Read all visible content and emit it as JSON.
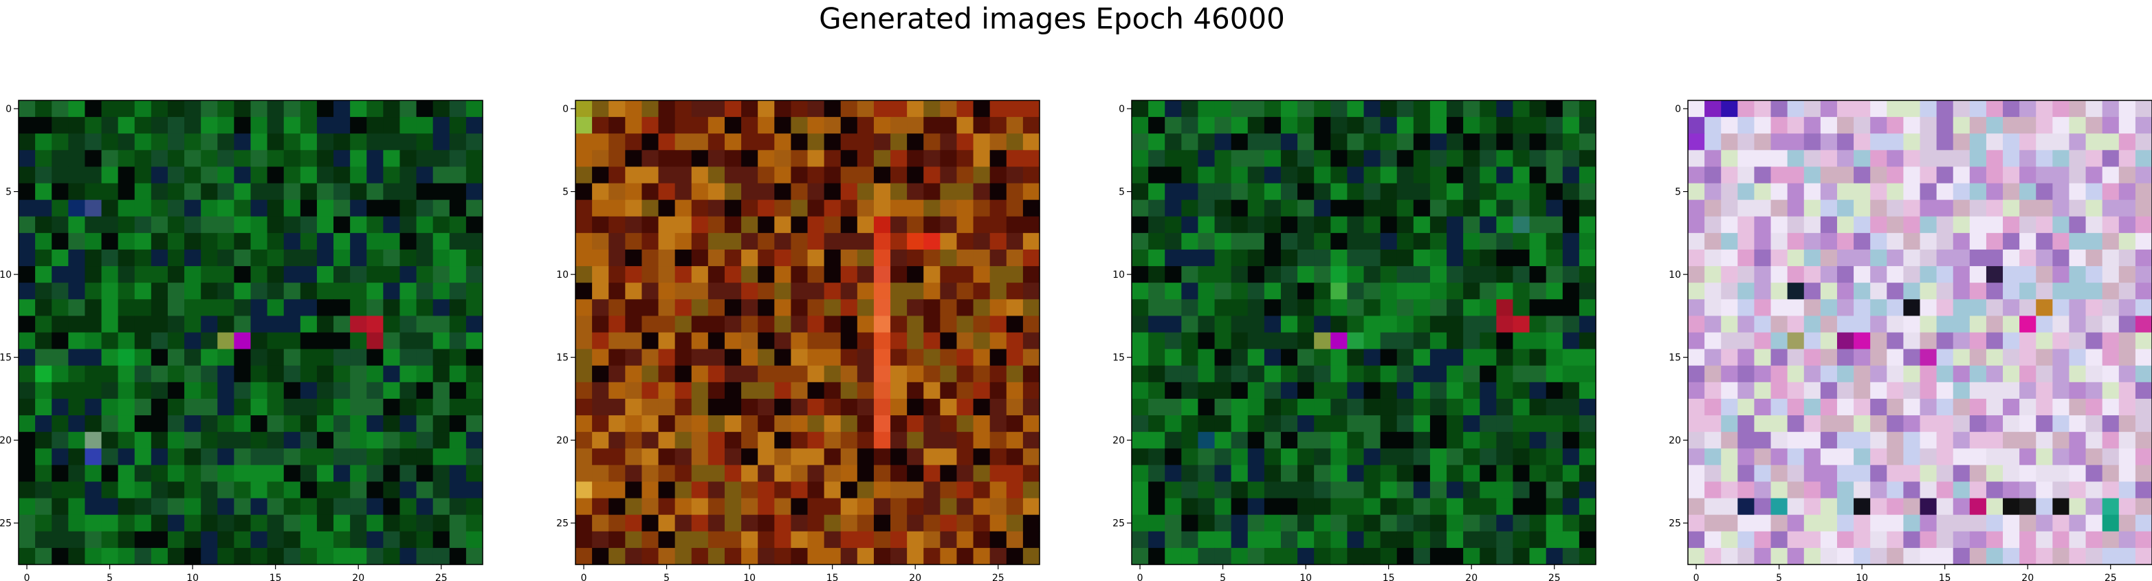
{
  "chart_data": {
    "type": "heatmap",
    "title": "Generated images Epoch 46000",
    "xlim": [
      -0.5,
      27.5
    ],
    "ylim": [
      27.5,
      -0.5
    ],
    "grid_size": [
      28,
      28
    ],
    "xticks": [
      0,
      5,
      10,
      15,
      20,
      25
    ],
    "yticks": [
      0,
      5,
      10,
      15,
      20,
      25
    ],
    "panels": [
      {
        "palette": [
          "#0a5a14",
          "#0b7a1e",
          "#06460e",
          "#0f8a24",
          "#05300b",
          "#134d2a",
          "#0a3a18",
          "#1c6a2e",
          "#020806",
          "#0a2040"
        ],
        "accents": [
          [
            6,
            3,
            "#0a2a6a"
          ],
          [
            6,
            4,
            "#3a4a8a"
          ],
          [
            13,
            20,
            "#b0152a"
          ],
          [
            13,
            21,
            "#c0182a"
          ],
          [
            14,
            21,
            "#a01225"
          ],
          [
            14,
            13,
            "#b000c0"
          ],
          [
            14,
            12,
            "#8a9a40"
          ],
          [
            21,
            4,
            "#3040b0"
          ],
          [
            20,
            4,
            "#7aa080"
          ],
          [
            15,
            6,
            "#0aa030"
          ],
          [
            16,
            1,
            "#10b030"
          ]
        ]
      },
      {
        "palette": [
          "#8a3c08",
          "#a35c10",
          "#6a1a06",
          "#b0620c",
          "#4a0c04",
          "#7a5a10",
          "#9a2a0a",
          "#c07a18",
          "#100204",
          "#5a1a10"
        ],
        "accents": [
          [
            7,
            18,
            "#c82010"
          ],
          [
            8,
            18,
            "#d83a18"
          ],
          [
            9,
            18,
            "#e04a20"
          ],
          [
            10,
            18,
            "#e05030"
          ],
          [
            11,
            18,
            "#e8602a"
          ],
          [
            12,
            18,
            "#e86030"
          ],
          [
            13,
            18,
            "#f07a40"
          ],
          [
            14,
            18,
            "#e05020"
          ],
          [
            15,
            18,
            "#e85a28"
          ],
          [
            16,
            18,
            "#e86030"
          ],
          [
            17,
            18,
            "#e05a28"
          ],
          [
            18,
            18,
            "#d84a20"
          ],
          [
            19,
            18,
            "#e85a30"
          ],
          [
            20,
            18,
            "#e04a20"
          ],
          [
            0,
            0,
            "#a0a020"
          ],
          [
            1,
            0,
            "#9abf40"
          ],
          [
            23,
            0,
            "#e0b040"
          ],
          [
            8,
            20,
            "#e03a10"
          ],
          [
            8,
            21,
            "#e02a18"
          ]
        ]
      },
      {
        "palette": [
          "#0a5a14",
          "#0b7a1e",
          "#06460e",
          "#0f8a24",
          "#05300b",
          "#134d2a",
          "#0a3a18",
          "#1c6a2e",
          "#020806",
          "#0a2040"
        ],
        "accents": [
          [
            13,
            22,
            "#b0152a"
          ],
          [
            13,
            23,
            "#c0182a"
          ],
          [
            12,
            22,
            "#a01225"
          ],
          [
            14,
            12,
            "#b000c0"
          ],
          [
            14,
            11,
            "#8a9a40"
          ],
          [
            10,
            12,
            "#10a030"
          ],
          [
            11,
            12,
            "#40b040"
          ],
          [
            14,
            13,
            "#20a040"
          ],
          [
            7,
            23,
            "#2a7a6a"
          ],
          [
            20,
            4,
            "#0a4a6a"
          ]
        ]
      },
      {
        "palette": [
          "#d8c8e0",
          "#e8e0f0",
          "#c0a0d8",
          "#f0e8f8",
          "#d0b0c0",
          "#b888d0",
          "#e8c0e0",
          "#a0c8d8",
          "#d8e8c8",
          "#c8d0f0",
          "#9a70c0",
          "#e0a0d0"
        ],
        "accents": [
          [
            0,
            1,
            "#8020c0"
          ],
          [
            0,
            2,
            "#3010b0"
          ],
          [
            1,
            0,
            "#8040c0"
          ],
          [
            2,
            0,
            "#9030d0"
          ],
          [
            11,
            6,
            "#102030"
          ],
          [
            12,
            13,
            "#101018"
          ],
          [
            14,
            6,
            "#a0a060"
          ],
          [
            14,
            9,
            "#8a1080"
          ],
          [
            14,
            10,
            "#d010b0"
          ],
          [
            15,
            14,
            "#c020b0"
          ],
          [
            24,
            3,
            "#102050"
          ],
          [
            24,
            5,
            "#20a0a0"
          ],
          [
            24,
            10,
            "#101018"
          ],
          [
            24,
            14,
            "#301050"
          ],
          [
            24,
            17,
            "#c01070"
          ],
          [
            24,
            19,
            "#101010"
          ],
          [
            24,
            20,
            "#202020"
          ],
          [
            24,
            22,
            "#101010"
          ],
          [
            24,
            25,
            "#20b090"
          ],
          [
            25,
            25,
            "#10a080"
          ],
          [
            13,
            20,
            "#e010a0"
          ],
          [
            12,
            21,
            "#c08020"
          ],
          [
            10,
            18,
            "#2a1a40"
          ],
          [
            13,
            27,
            "#d030a0"
          ]
        ]
      }
    ]
  }
}
